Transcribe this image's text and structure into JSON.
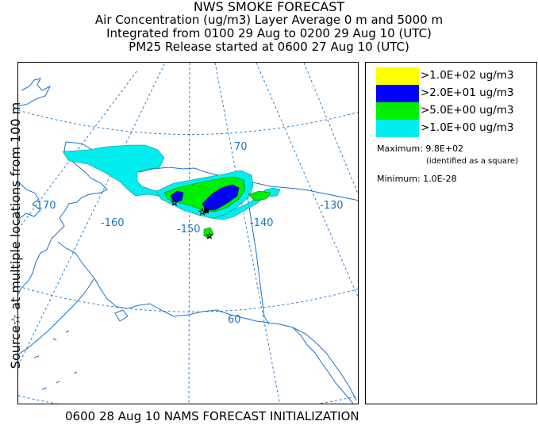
{
  "title": {
    "line1": "NWS SMOKE FORECAST",
    "line2": "Air Concentration (ug/m3) Layer Average    0 m and  5000 m",
    "line3": "Integrated from 0100 29 Aug to 0200 29 Aug 10 (UTC)",
    "line4": "PM25 Release started at 0600 27 Aug 10 (UTC)"
  },
  "side_label": "Source☆ at multiple locations from 100 m",
  "footer": "0600 28 Aug 10 NAMS FORECAST INITIALIZATION",
  "map": {
    "grid_labels": {
      "lon_170": "-170",
      "lon_160": "-160",
      "lon_150": "-150",
      "lon_140": "-140",
      "lon_130": "-130",
      "lat_70": "70",
      "lat_60": "60"
    },
    "colors": {
      "coast": "#1a73c8",
      "grid": "#1a73c8"
    }
  },
  "legend": {
    "items": [
      {
        "label": ">1.0E+02 ug/m3",
        "color": "#ffff00"
      },
      {
        "label": ">2.0E+01 ug/m3",
        "color": "#0000ff"
      },
      {
        "label": ">5.0E+00 ug/m3",
        "color": "#00ee00"
      },
      {
        "label": ">1.0E+00 ug/m3",
        "color": "#00eeee"
      }
    ],
    "maximum": "Maximum: 9.8E+02",
    "max_note": "(identified as a square)",
    "minimum": "Minimum: 1.0E-28"
  }
}
